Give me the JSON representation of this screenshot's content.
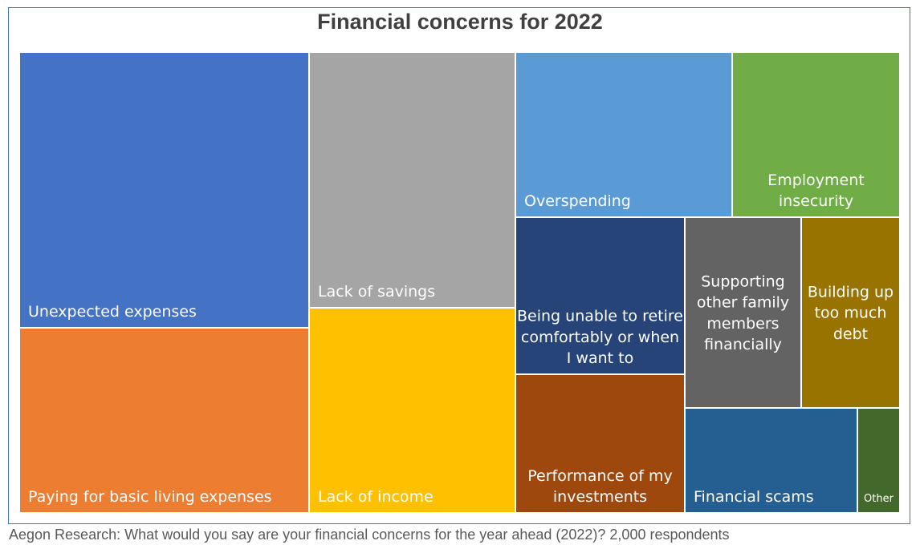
{
  "chart_data": {
    "type": "treemap",
    "title": "Financial concerns for 2022",
    "caption": "Aegon Research: What would you say are your financial concerns for the year ahead (2022)? 2,000 respondents",
    "series": [
      {
        "name": "Unexpected expenses",
        "lines": [
          "Unexpected expenses"
        ],
        "value": 22,
        "color": "#4472c4"
      },
      {
        "name": "Paying for basic living expenses",
        "lines": [
          "Paying for basic living expenses"
        ],
        "value": 16,
        "color": "#ed7d31"
      },
      {
        "name": "Lack of savings",
        "lines": [
          "Lack of savings"
        ],
        "value": 14.5,
        "color": "#a5a5a5"
      },
      {
        "name": "Lack of income",
        "lines": [
          "Lack of income"
        ],
        "value": 11.5,
        "color": "#ffc000"
      },
      {
        "name": "Overspending",
        "lines": [
          "Overspending"
        ],
        "value": 9,
        "color": "#5b9bd5"
      },
      {
        "name": "Employment insecurity",
        "lines": [
          "Employment",
          "insecurity"
        ],
        "value": 7,
        "color": "#70ad47"
      },
      {
        "name": "Being unable to retire comfortably or when I want to",
        "lines": [
          "Being unable to retire",
          "comfortably or when",
          "I want to"
        ],
        "value": 6.5,
        "color": "#264478"
      },
      {
        "name": "Performance of my investments",
        "lines": [
          "Performance of my",
          "investments"
        ],
        "value": 4.5,
        "color": "#9e480e"
      },
      {
        "name": "Supporting other family members financially",
        "lines": [
          "Supporting",
          "other family",
          "members",
          "financially"
        ],
        "value": 5.5,
        "color": "#636363"
      },
      {
        "name": "Building up too much debt",
        "lines": [
          "Building up",
          "too much",
          "debt"
        ],
        "value": 4.5,
        "color": "#997300"
      },
      {
        "name": "Financial scams",
        "lines": [
          "Financial scams"
        ],
        "value": 3.5,
        "color": "#255e91"
      },
      {
        "name": "Other",
        "lines": [
          "Other"
        ],
        "value": 1,
        "color": "#43682b"
      }
    ]
  }
}
